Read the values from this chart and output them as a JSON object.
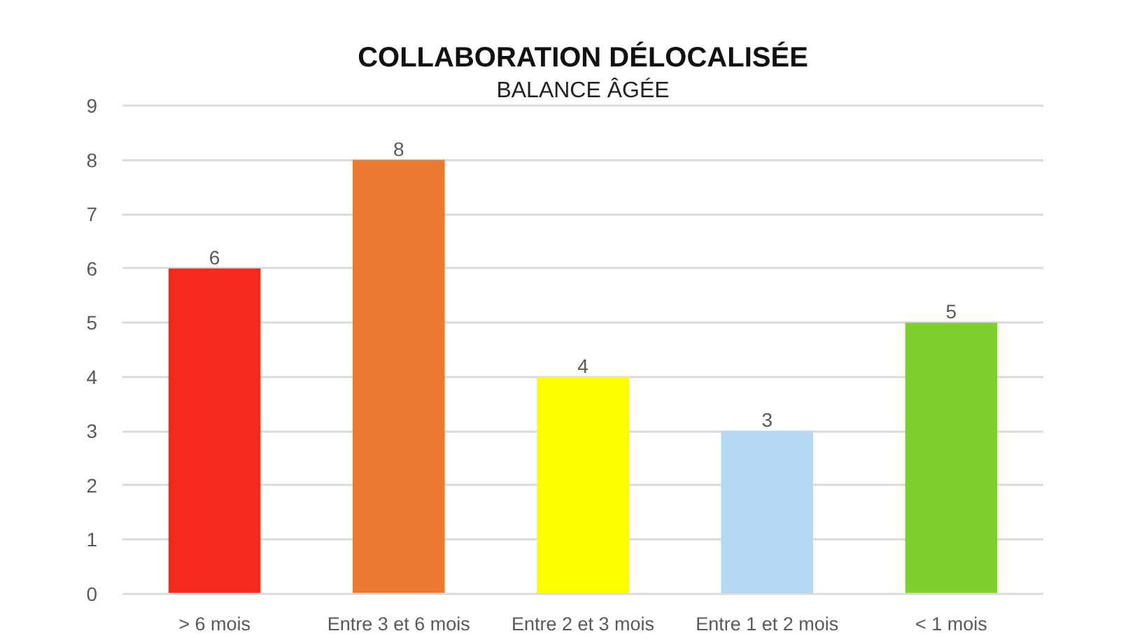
{
  "chart_data": {
    "type": "bar",
    "title": "COLLABORATION DÉLOCALISÉE",
    "subtitle": "BALANCE ÂGÉE",
    "categories": [
      "> 6 mois",
      "Entre 3 et 6 mois",
      "Entre 2 et 3 mois",
      "Entre 1 et 2 mois",
      "< 1 mois"
    ],
    "values": [
      6,
      8,
      4,
      3,
      5
    ],
    "colors": [
      "#f42a1c",
      "#e97a2f",
      "#fdfd00",
      "#b4d7f2",
      "#7ccf2c"
    ],
    "ylim": [
      0,
      9
    ],
    "yticks": [
      0,
      1,
      2,
      3,
      4,
      5,
      6,
      7,
      8,
      9
    ],
    "grid": "y",
    "data_labels": true
  }
}
